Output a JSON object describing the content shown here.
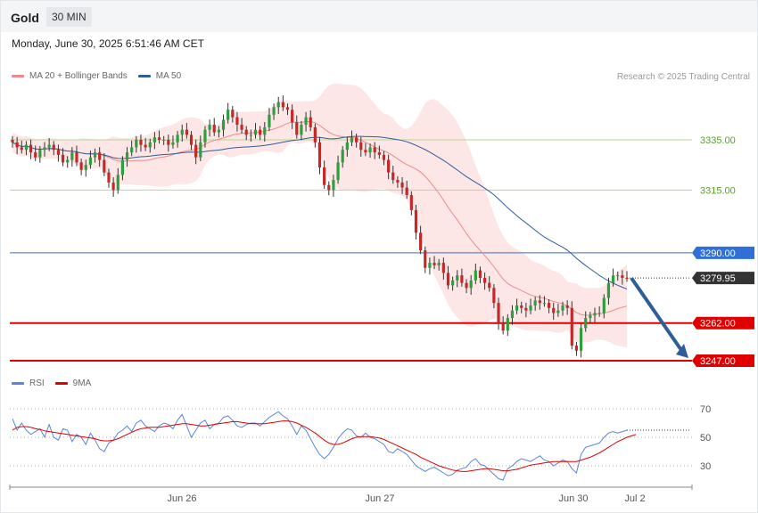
{
  "header": {
    "symbol": "Gold",
    "timeframe": "30 MIN"
  },
  "datetime": "Monday, June 30, 2025 6:51:46 AM CET",
  "legend_price": [
    {
      "label": "MA 20 + Bollinger Bands",
      "color": "#f08a8a"
    },
    {
      "label": "MA 50",
      "color": "#2f5d9b"
    }
  ],
  "legend_rsi": [
    {
      "label": "RSI",
      "color": "#5b86d8"
    },
    {
      "label": "9MA",
      "color": "#e00000"
    }
  ],
  "credit": "Research © 2025 Trading Central",
  "chart_data": [
    {
      "type": "candlestick",
      "title": "Gold 30 MIN",
      "y_range": [
        3242,
        3352
      ],
      "levels": [
        {
          "value": 3335.0,
          "label": "3335.00",
          "kind": "resistance",
          "color": "#9ccc65"
        },
        {
          "value": 3315.0,
          "label": "3315.00",
          "kind": "resistance",
          "color": "#9ccc65"
        },
        {
          "value": 3290.0,
          "label": "3290.00",
          "kind": "pivot",
          "color": "#2f6fd6"
        },
        {
          "value": 3279.95,
          "label": "3279.95",
          "kind": "last-price",
          "color": "#333333"
        },
        {
          "value": 3262.0,
          "label": "3262.00",
          "kind": "support",
          "color": "#e00000"
        },
        {
          "value": 3247.0,
          "label": "3247.00",
          "kind": "support",
          "color": "#e00000"
        }
      ],
      "x_ticks": [
        "Jun 26",
        "Jun 27",
        "Jun 30",
        "Jul 2"
      ],
      "forecast_arrow": {
        "from": 3279.95,
        "to": 3247.0
      },
      "close": [
        3334,
        3332,
        3331,
        3333,
        3330,
        3328,
        3331,
        3332,
        3333,
        3331,
        3329,
        3326,
        3327,
        3330,
        3326,
        3323,
        3325,
        3328,
        3330,
        3327,
        3322,
        3318,
        3315,
        3321,
        3327,
        3330,
        3332,
        3335,
        3333,
        3332,
        3334,
        3336,
        3335,
        3335,
        3333,
        3334,
        3337,
        3339,
        3337,
        3333,
        3328,
        3334,
        3339,
        3341,
        3338,
        3339,
        3343,
        3347,
        3344,
        3341,
        3339,
        3337,
        3337,
        3339,
        3337,
        3340,
        3345,
        3348,
        3350,
        3348,
        3347,
        3342,
        3337,
        3341,
        3344,
        3340,
        3334,
        3324,
        3317,
        3315,
        3319,
        3326,
        3331,
        3334,
        3336,
        3334,
        3331,
        3330,
        3332,
        3330,
        3329,
        3327,
        3322,
        3319,
        3318,
        3316,
        3313,
        3307,
        3298,
        3291,
        3284,
        3286,
        3285,
        3286,
        3282,
        3277,
        3279,
        3281,
        3278,
        3276,
        3279,
        3283,
        3280,
        3278,
        3276,
        3270,
        3262,
        3259,
        3264,
        3267,
        3269,
        3268,
        3267,
        3269,
        3271,
        3270,
        3270,
        3268,
        3266,
        3267,
        3269,
        3268,
        3253,
        3251,
        3260,
        3264,
        3265,
        3266,
        3266,
        3272,
        3278,
        3281,
        3281,
        3280,
        3279.95
      ]
    },
    {
      "type": "line",
      "title": "RSI",
      "y_range": [
        15,
        80
      ],
      "y_ticks": [
        70,
        50,
        30
      ],
      "series": [
        {
          "name": "RSI",
          "color": "#5b86d8",
          "values": [
            63,
            55,
            60,
            55,
            52,
            54,
            56,
            50,
            59,
            50,
            48,
            56,
            55,
            47,
            52,
            50,
            45,
            53,
            48,
            42,
            40,
            46,
            48,
            53,
            55,
            58,
            54,
            60,
            62,
            58,
            56,
            54,
            58,
            60,
            59,
            56,
            62,
            66,
            58,
            50,
            55,
            60,
            62,
            56,
            59,
            60,
            64,
            65,
            62,
            58,
            57,
            59,
            60,
            60,
            58,
            61,
            64,
            66,
            68,
            65,
            63,
            58,
            52,
            58,
            55,
            49,
            43,
            38,
            35,
            38,
            43,
            49,
            53,
            56,
            55,
            51,
            50,
            53,
            50,
            49,
            47,
            45,
            40,
            39,
            42,
            40,
            38,
            34,
            30,
            28,
            26,
            28,
            29,
            27,
            25,
            23,
            24,
            27,
            28,
            29,
            33,
            35,
            31,
            30,
            27,
            24,
            21,
            20,
            28,
            30,
            33,
            35,
            34,
            33,
            35,
            37,
            34,
            33,
            30,
            32,
            34,
            33,
            28,
            25,
            38,
            43,
            44,
            45,
            46,
            50,
            53,
            54,
            53,
            54,
            55
          ]
        },
        {
          "name": "9MA",
          "color": "#e00000",
          "values": [
            55,
            57,
            57.5,
            57.5,
            57,
            56,
            55.5,
            54.5,
            54,
            53.5,
            53,
            52.5,
            52,
            51.5,
            51,
            50.5,
            50,
            49.5,
            49,
            48,
            47.5,
            47.5,
            48,
            49,
            50.5,
            52,
            53.5,
            55,
            56,
            56.5,
            57,
            57,
            57,
            57.5,
            58,
            58.5,
            59,
            59.5,
            59.5,
            59,
            58.5,
            58,
            58,
            58.5,
            59,
            59.5,
            60,
            60.5,
            61,
            61,
            60.5,
            60,
            59.5,
            59.5,
            59.5,
            59.5,
            60,
            60.5,
            61,
            61.5,
            61.5,
            61,
            60,
            58.5,
            57,
            55,
            53,
            50.5,
            48,
            46,
            45,
            45,
            46,
            47.5,
            49,
            50,
            50.5,
            50.5,
            50.5,
            50,
            49.5,
            48.5,
            47,
            45.5,
            44,
            42.5,
            41,
            39.5,
            38,
            36,
            34.5,
            33,
            31.5,
            30,
            29,
            28,
            27,
            26.5,
            26,
            26,
            26.5,
            27,
            27.5,
            28,
            28,
            27.5,
            27,
            26.5,
            26.5,
            27,
            27.5,
            28.5,
            29.5,
            30.5,
            31,
            31.5,
            32,
            32.5,
            33,
            33,
            33,
            33,
            33,
            33,
            34,
            35,
            36,
            37.5,
            39,
            41,
            43,
            45,
            47,
            48.5,
            50,
            51,
            52
          ]
        }
      ]
    }
  ]
}
